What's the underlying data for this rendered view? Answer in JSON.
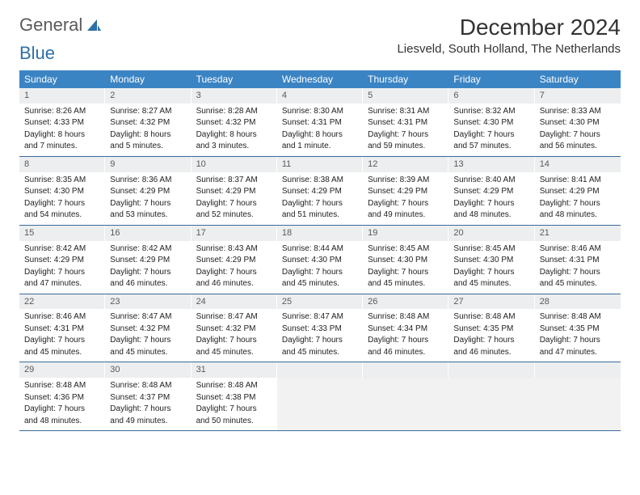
{
  "logo": {
    "text1": "General",
    "text2": "Blue"
  },
  "title": "December 2024",
  "location": "Liesveld, South Holland, The Netherlands",
  "day_names": [
    "Sunday",
    "Monday",
    "Tuesday",
    "Wednesday",
    "Thursday",
    "Friday",
    "Saturday"
  ],
  "colors": {
    "header_bg": "#3b84c4",
    "daynum_bg": "#eceeef",
    "week_border": "#3b6a9a"
  },
  "weeks": [
    [
      {
        "n": "1",
        "sr": "Sunrise: 8:26 AM",
        "ss": "Sunset: 4:33 PM",
        "dl1": "Daylight: 8 hours",
        "dl2": "and 7 minutes."
      },
      {
        "n": "2",
        "sr": "Sunrise: 8:27 AM",
        "ss": "Sunset: 4:32 PM",
        "dl1": "Daylight: 8 hours",
        "dl2": "and 5 minutes."
      },
      {
        "n": "3",
        "sr": "Sunrise: 8:28 AM",
        "ss": "Sunset: 4:32 PM",
        "dl1": "Daylight: 8 hours",
        "dl2": "and 3 minutes."
      },
      {
        "n": "4",
        "sr": "Sunrise: 8:30 AM",
        "ss": "Sunset: 4:31 PM",
        "dl1": "Daylight: 8 hours",
        "dl2": "and 1 minute."
      },
      {
        "n": "5",
        "sr": "Sunrise: 8:31 AM",
        "ss": "Sunset: 4:31 PM",
        "dl1": "Daylight: 7 hours",
        "dl2": "and 59 minutes."
      },
      {
        "n": "6",
        "sr": "Sunrise: 8:32 AM",
        "ss": "Sunset: 4:30 PM",
        "dl1": "Daylight: 7 hours",
        "dl2": "and 57 minutes."
      },
      {
        "n": "7",
        "sr": "Sunrise: 8:33 AM",
        "ss": "Sunset: 4:30 PM",
        "dl1": "Daylight: 7 hours",
        "dl2": "and 56 minutes."
      }
    ],
    [
      {
        "n": "8",
        "sr": "Sunrise: 8:35 AM",
        "ss": "Sunset: 4:30 PM",
        "dl1": "Daylight: 7 hours",
        "dl2": "and 54 minutes."
      },
      {
        "n": "9",
        "sr": "Sunrise: 8:36 AM",
        "ss": "Sunset: 4:29 PM",
        "dl1": "Daylight: 7 hours",
        "dl2": "and 53 minutes."
      },
      {
        "n": "10",
        "sr": "Sunrise: 8:37 AM",
        "ss": "Sunset: 4:29 PM",
        "dl1": "Daylight: 7 hours",
        "dl2": "and 52 minutes."
      },
      {
        "n": "11",
        "sr": "Sunrise: 8:38 AM",
        "ss": "Sunset: 4:29 PM",
        "dl1": "Daylight: 7 hours",
        "dl2": "and 51 minutes."
      },
      {
        "n": "12",
        "sr": "Sunrise: 8:39 AM",
        "ss": "Sunset: 4:29 PM",
        "dl1": "Daylight: 7 hours",
        "dl2": "and 49 minutes."
      },
      {
        "n": "13",
        "sr": "Sunrise: 8:40 AM",
        "ss": "Sunset: 4:29 PM",
        "dl1": "Daylight: 7 hours",
        "dl2": "and 48 minutes."
      },
      {
        "n": "14",
        "sr": "Sunrise: 8:41 AM",
        "ss": "Sunset: 4:29 PM",
        "dl1": "Daylight: 7 hours",
        "dl2": "and 48 minutes."
      }
    ],
    [
      {
        "n": "15",
        "sr": "Sunrise: 8:42 AM",
        "ss": "Sunset: 4:29 PM",
        "dl1": "Daylight: 7 hours",
        "dl2": "and 47 minutes."
      },
      {
        "n": "16",
        "sr": "Sunrise: 8:42 AM",
        "ss": "Sunset: 4:29 PM",
        "dl1": "Daylight: 7 hours",
        "dl2": "and 46 minutes."
      },
      {
        "n": "17",
        "sr": "Sunrise: 8:43 AM",
        "ss": "Sunset: 4:29 PM",
        "dl1": "Daylight: 7 hours",
        "dl2": "and 46 minutes."
      },
      {
        "n": "18",
        "sr": "Sunrise: 8:44 AM",
        "ss": "Sunset: 4:30 PM",
        "dl1": "Daylight: 7 hours",
        "dl2": "and 45 minutes."
      },
      {
        "n": "19",
        "sr": "Sunrise: 8:45 AM",
        "ss": "Sunset: 4:30 PM",
        "dl1": "Daylight: 7 hours",
        "dl2": "and 45 minutes."
      },
      {
        "n": "20",
        "sr": "Sunrise: 8:45 AM",
        "ss": "Sunset: 4:30 PM",
        "dl1": "Daylight: 7 hours",
        "dl2": "and 45 minutes."
      },
      {
        "n": "21",
        "sr": "Sunrise: 8:46 AM",
        "ss": "Sunset: 4:31 PM",
        "dl1": "Daylight: 7 hours",
        "dl2": "and 45 minutes."
      }
    ],
    [
      {
        "n": "22",
        "sr": "Sunrise: 8:46 AM",
        "ss": "Sunset: 4:31 PM",
        "dl1": "Daylight: 7 hours",
        "dl2": "and 45 minutes."
      },
      {
        "n": "23",
        "sr": "Sunrise: 8:47 AM",
        "ss": "Sunset: 4:32 PM",
        "dl1": "Daylight: 7 hours",
        "dl2": "and 45 minutes."
      },
      {
        "n": "24",
        "sr": "Sunrise: 8:47 AM",
        "ss": "Sunset: 4:32 PM",
        "dl1": "Daylight: 7 hours",
        "dl2": "and 45 minutes."
      },
      {
        "n": "25",
        "sr": "Sunrise: 8:47 AM",
        "ss": "Sunset: 4:33 PM",
        "dl1": "Daylight: 7 hours",
        "dl2": "and 45 minutes."
      },
      {
        "n": "26",
        "sr": "Sunrise: 8:48 AM",
        "ss": "Sunset: 4:34 PM",
        "dl1": "Daylight: 7 hours",
        "dl2": "and 46 minutes."
      },
      {
        "n": "27",
        "sr": "Sunrise: 8:48 AM",
        "ss": "Sunset: 4:35 PM",
        "dl1": "Daylight: 7 hours",
        "dl2": "and 46 minutes."
      },
      {
        "n": "28",
        "sr": "Sunrise: 8:48 AM",
        "ss": "Sunset: 4:35 PM",
        "dl1": "Daylight: 7 hours",
        "dl2": "and 47 minutes."
      }
    ],
    [
      {
        "n": "29",
        "sr": "Sunrise: 8:48 AM",
        "ss": "Sunset: 4:36 PM",
        "dl1": "Daylight: 7 hours",
        "dl2": "and 48 minutes."
      },
      {
        "n": "30",
        "sr": "Sunrise: 8:48 AM",
        "ss": "Sunset: 4:37 PM",
        "dl1": "Daylight: 7 hours",
        "dl2": "and 49 minutes."
      },
      {
        "n": "31",
        "sr": "Sunrise: 8:48 AM",
        "ss": "Sunset: 4:38 PM",
        "dl1": "Daylight: 7 hours",
        "dl2": "and 50 minutes."
      },
      {
        "empty": true
      },
      {
        "empty": true
      },
      {
        "empty": true
      },
      {
        "empty": true
      }
    ]
  ]
}
